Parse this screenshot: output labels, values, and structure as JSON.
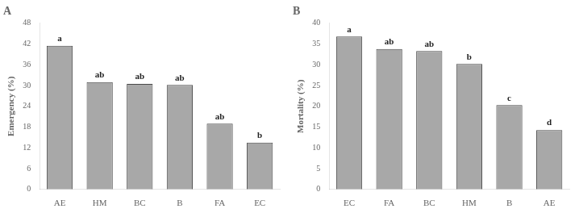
{
  "chart_data": [
    {
      "type": "bar",
      "title": "A",
      "categories": [
        "AE",
        "HM",
        "BC",
        "B",
        "FA",
        "EC"
      ],
      "values": [
        41.5,
        31.0,
        30.5,
        30.2,
        19.0,
        13.5
      ],
      "annotations": [
        "a",
        "ab",
        "ab",
        "ab",
        "ab",
        "b"
      ],
      "ylabel": "Emergency (%)",
      "ylim": [
        0,
        48
      ],
      "yticks": [
        0,
        6,
        12,
        18,
        24,
        30,
        36,
        42,
        48
      ],
      "color": "#a8a8a8",
      "grid": false
    },
    {
      "type": "bar",
      "title": "B",
      "categories": [
        "EC",
        "FA",
        "BC",
        "HM",
        "B",
        "AE"
      ],
      "values": [
        36.8,
        33.8,
        33.3,
        30.2,
        20.3,
        14.3
      ],
      "annotations": [
        "a",
        "ab",
        "ab",
        "b",
        "c",
        "d"
      ],
      "ylabel": "Mortality (%)",
      "ylim": [
        0,
        40
      ],
      "yticks": [
        0,
        5,
        10,
        15,
        20,
        25,
        30,
        35,
        40
      ],
      "color": "#a8a8a8",
      "grid": false
    }
  ]
}
